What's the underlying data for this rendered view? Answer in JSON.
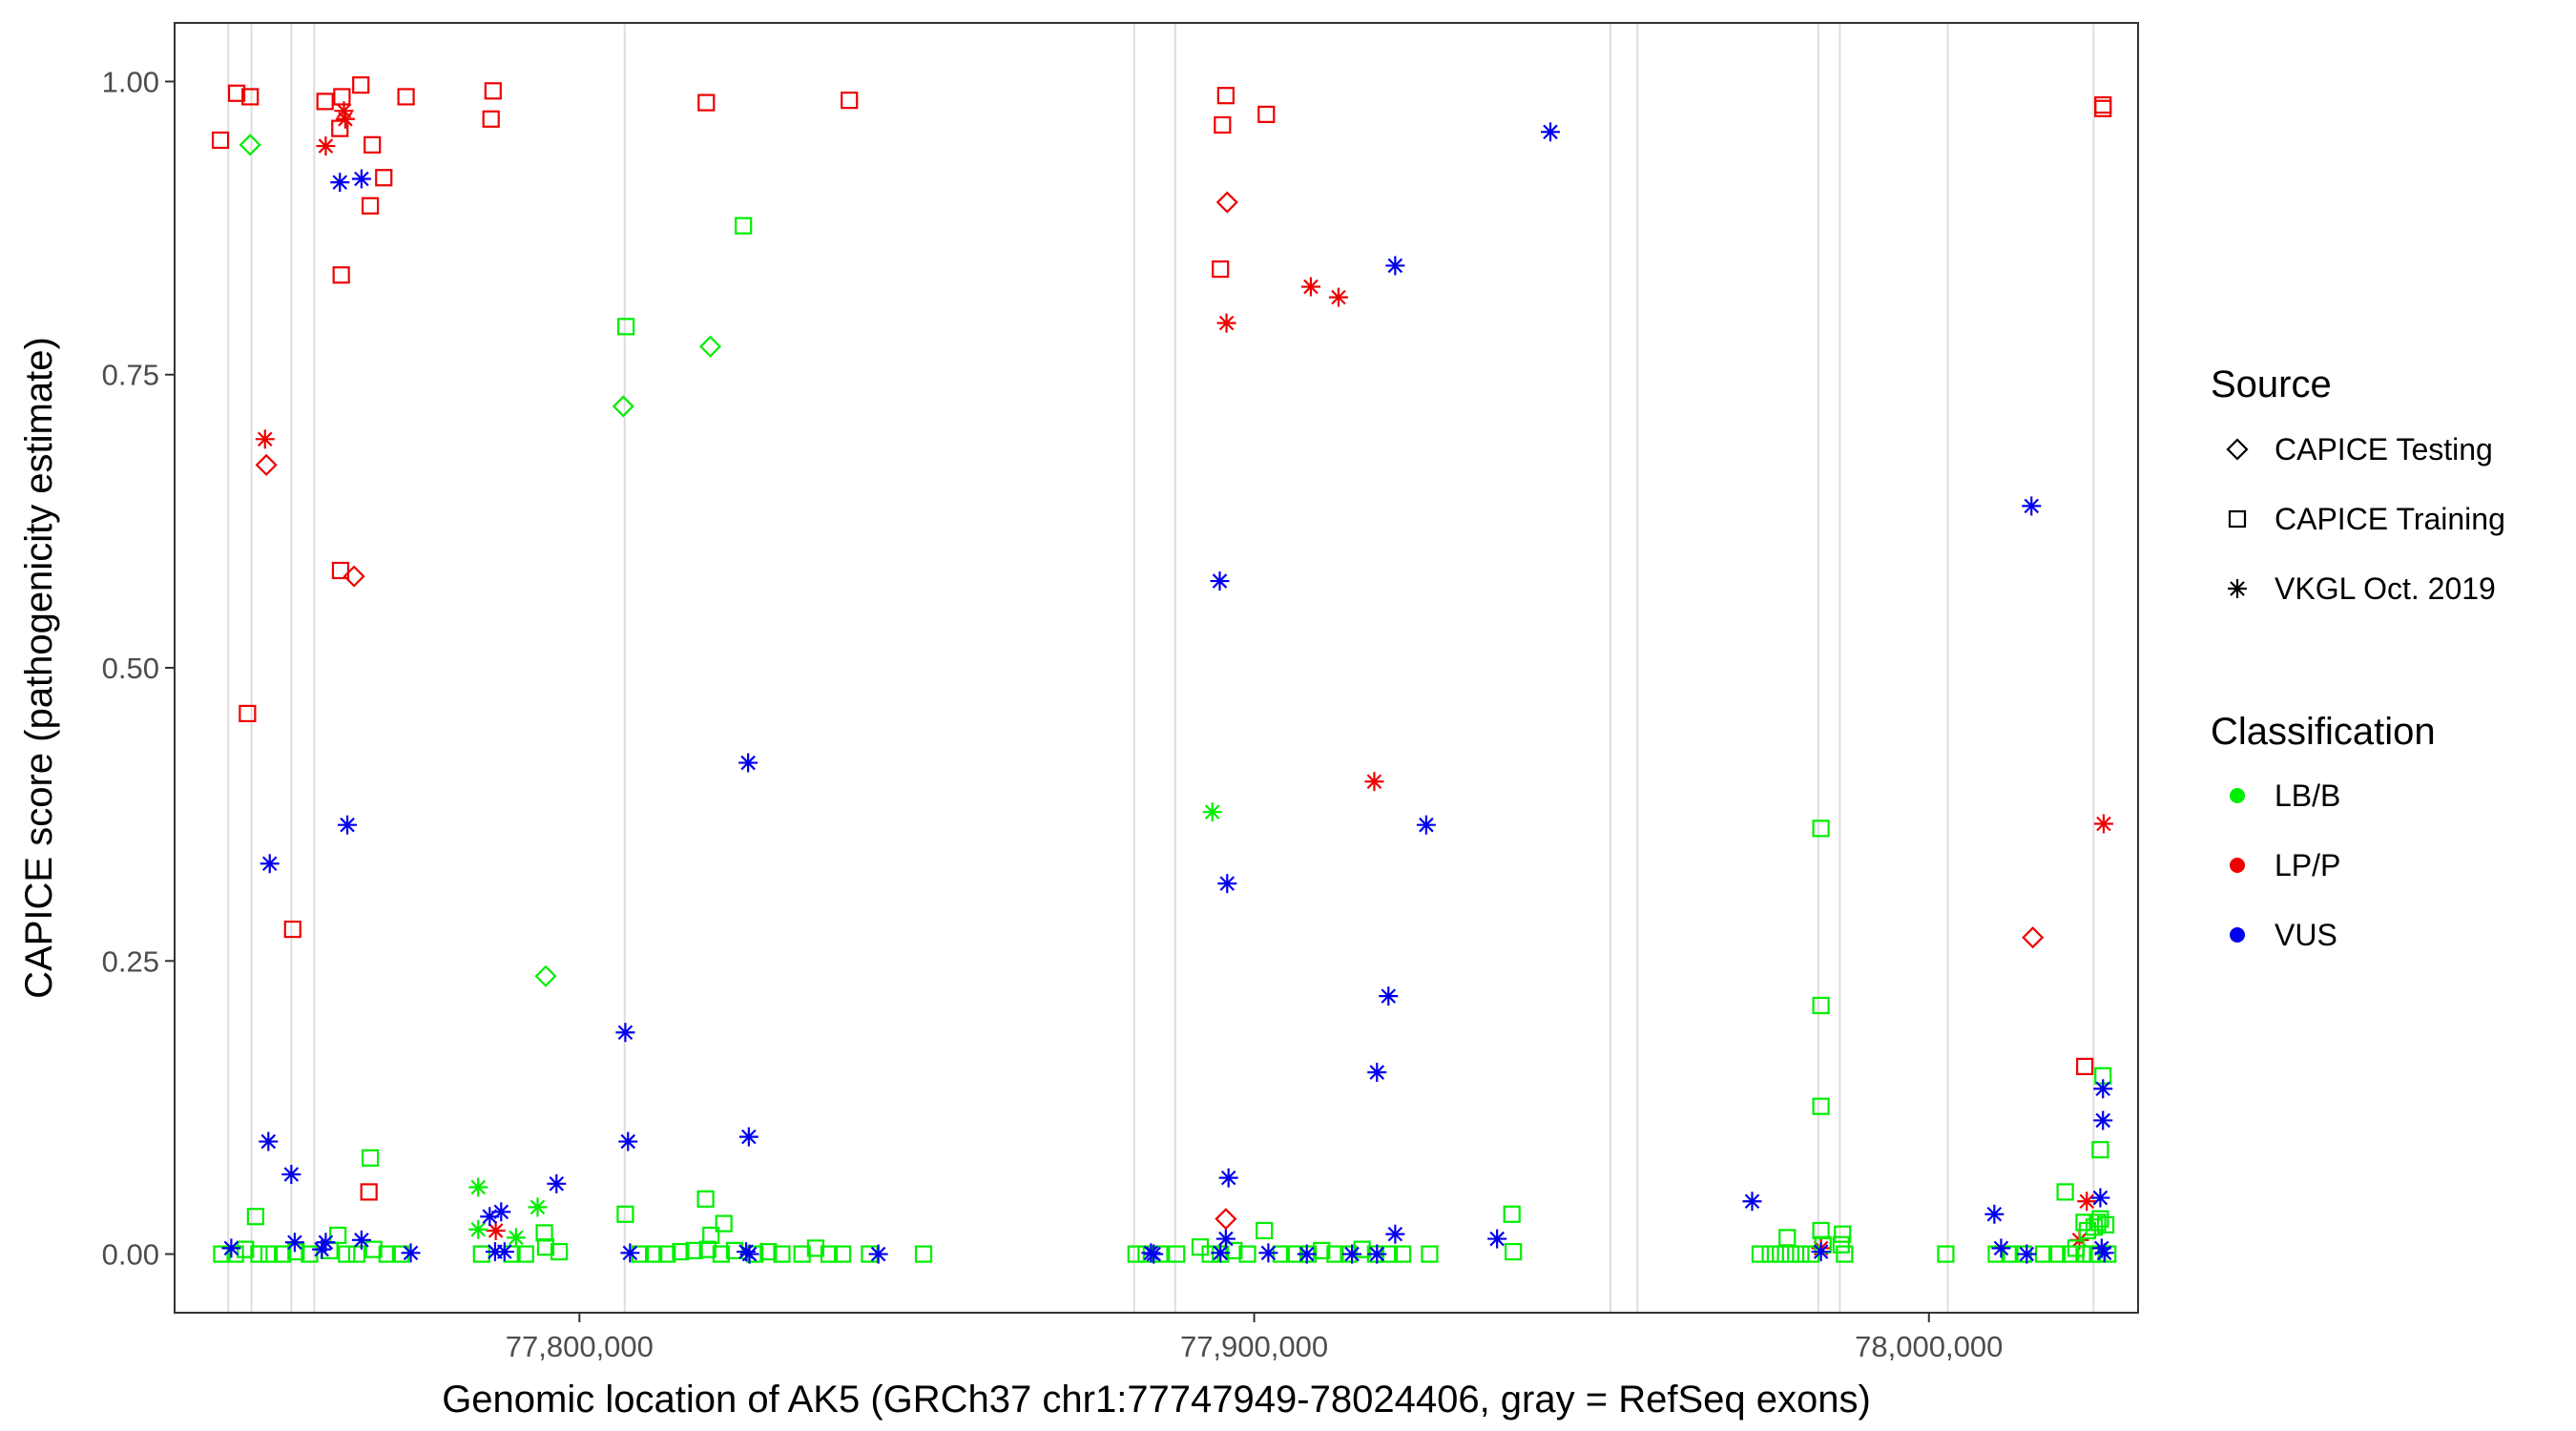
{
  "chart_data": {
    "type": "scatter",
    "xlabel": "Genomic location of AK5 (GRCh37 chr1:77747949-78024406, gray = RefSeq exons)",
    "ylabel": "CAPICE score (pathogenicity estimate)",
    "xlim": [
      77740000,
      78031000
    ],
    "ylim": [
      -0.05,
      1.05
    ],
    "x_ticks": [
      77800000,
      77900000,
      78000000
    ],
    "x_tick_labels": [
      "77,800,000",
      "77,900,000",
      "78,000,000"
    ],
    "y_ticks": [
      0,
      0.25,
      0.5,
      0.75,
      1.0
    ],
    "y_tick_labels": [
      "0.00",
      "0.25",
      "0.50",
      "0.75",
      "1.00"
    ],
    "grid": false,
    "exons": [
      77747949,
      77751400,
      77757300,
      77760700,
      77806700,
      77882200,
      77888300,
      77952800,
      77956800,
      77983600,
      77986800,
      78002800,
      78024406
    ],
    "colors": {
      "LB/B": "#00ee00",
      "LP/P": "#ee0000",
      "VUS": "#0000ee"
    },
    "legend": {
      "placement": "right",
      "source_title": "Source",
      "source_entries": [
        {
          "label": "CAPICE Testing",
          "shape": "diamond"
        },
        {
          "label": "CAPICE Training",
          "shape": "square"
        },
        {
          "label": "VKGL Oct. 2019",
          "shape": "asterisk"
        }
      ],
      "class_title": "Classification",
      "class_entries": [
        {
          "label": "LB/B",
          "key": "LB/B"
        },
        {
          "label": "LP/P",
          "key": "LP/P"
        },
        {
          "label": "VUS",
          "key": "VUS"
        }
      ]
    },
    "series": [
      {
        "source": "CAPICE Training",
        "classification": "LP/P",
        "points": [
          [
            77746800,
            0.95
          ],
          [
            77749200,
            0.99
          ],
          [
            77751200,
            0.987
          ],
          [
            77762300,
            0.983
          ],
          [
            77764800,
            0.987
          ],
          [
            77767600,
            0.997
          ],
          [
            77774300,
            0.987
          ],
          [
            77787200,
            0.992
          ],
          [
            77786900,
            0.968
          ],
          [
            77818800,
            0.982
          ],
          [
            77840000,
            0.984
          ],
          [
            77764500,
            0.96
          ],
          [
            77769300,
            0.946
          ],
          [
            77771000,
            0.918
          ],
          [
            77769000,
            0.894
          ],
          [
            77764700,
            0.835
          ],
          [
            77764600,
            0.583
          ],
          [
            77750800,
            0.461
          ],
          [
            77757500,
            0.277
          ],
          [
            77768800,
            0.053
          ],
          [
            77895800,
            0.988
          ],
          [
            77895300,
            0.963
          ],
          [
            77901800,
            0.972
          ],
          [
            77895000,
            0.84
          ],
          [
            78025800,
            0.98
          ],
          [
            78025800,
            0.977
          ],
          [
            78023100,
            0.16
          ]
        ]
      },
      {
        "source": "CAPICE Testing",
        "classification": "LP/P",
        "points": [
          [
            77753600,
            0.673
          ],
          [
            77766600,
            0.578
          ],
          [
            77896000,
            0.897
          ],
          [
            77895800,
            0.03
          ],
          [
            78015400,
            0.27
          ]
        ]
      },
      {
        "source": "VKGL Oct. 2019",
        "classification": "LP/P",
        "points": [
          [
            77762400,
            0.945
          ],
          [
            77765100,
            0.975
          ],
          [
            77765300,
            0.968
          ],
          [
            77753400,
            0.695
          ],
          [
            77895900,
            0.794
          ],
          [
            77908400,
            0.825
          ],
          [
            77912500,
            0.816
          ],
          [
            77917800,
            0.403
          ],
          [
            77787600,
            0.02
          ],
          [
            78025900,
            0.367
          ],
          [
            78023400,
            0.045
          ],
          [
            78022300,
            0.012
          ],
          [
            77984000,
            0.005
          ]
        ]
      },
      {
        "source": "CAPICE Testing",
        "classification": "LB/B",
        "points": [
          [
            77751200,
            0.946
          ],
          [
            77806500,
            0.723
          ],
          [
            77819400,
            0.774
          ],
          [
            77795000,
            0.237
          ]
        ]
      },
      {
        "source": "CAPICE Training",
        "classification": "LB/B",
        "points": [
          [
            77806900,
            0.791
          ],
          [
            77824300,
            0.877
          ],
          [
            77769000,
            0.082
          ],
          [
            77752000,
            0.032
          ],
          [
            77806800,
            0.034
          ],
          [
            77818700,
            0.047
          ],
          [
            77821400,
            0.026
          ],
          [
            77819500,
            0.016
          ],
          [
            77764200,
            0.016
          ],
          [
            77794800,
            0.018
          ],
          [
            77747000,
            0.0
          ],
          [
            77749000,
            0.0
          ],
          [
            77750500,
            0.004
          ],
          [
            77752500,
            0.0
          ],
          [
            77754000,
            0.0
          ],
          [
            77756000,
            0.0
          ],
          [
            77758000,
            0.002
          ],
          [
            77760000,
            0.0
          ],
          [
            77763000,
            0.003
          ],
          [
            77765500,
            0.0
          ],
          [
            77767000,
            0.0
          ],
          [
            77769500,
            0.004
          ],
          [
            77771500,
            0.0
          ],
          [
            77773500,
            0.0
          ],
          [
            77785500,
            0.0
          ],
          [
            77790000,
            0.0
          ],
          [
            77792000,
            0.0
          ],
          [
            77795000,
            0.006
          ],
          [
            77797000,
            0.002
          ],
          [
            77809000,
            0.0
          ],
          [
            77811000,
            0.0
          ],
          [
            77813000,
            0.0
          ],
          [
            77815000,
            0.002
          ],
          [
            77817000,
            0.003
          ],
          [
            77819000,
            0.004
          ],
          [
            77821000,
            0.0
          ],
          [
            77823000,
            0.003
          ],
          [
            77826000,
            0.0
          ],
          [
            77828000,
            0.002
          ],
          [
            77830000,
            0.0
          ],
          [
            77833000,
            0.0
          ],
          [
            77835000,
            0.005
          ],
          [
            77837000,
            0.0
          ],
          [
            77839000,
            0.0
          ],
          [
            77843000,
            0.0
          ],
          [
            77851000,
            0.0
          ],
          [
            77882500,
            0.0
          ],
          [
            77884000,
            0.0
          ],
          [
            77886000,
            0.0
          ],
          [
            77888500,
            0.0
          ],
          [
            77892000,
            0.006
          ],
          [
            77893500,
            0.0
          ],
          [
            77895000,
            0.0
          ],
          [
            77897000,
            0.003
          ],
          [
            77899000,
            0.0
          ],
          [
            77901500,
            0.02
          ],
          [
            77904000,
            0.0
          ],
          [
            77906000,
            0.0
          ],
          [
            77908000,
            0.0
          ],
          [
            77910000,
            0.003
          ],
          [
            77912000,
            0.0
          ],
          [
            77914000,
            0.0
          ],
          [
            77916000,
            0.004
          ],
          [
            77918000,
            0.0
          ],
          [
            77920000,
            0.0
          ],
          [
            77922000,
            0.0
          ],
          [
            77926000,
            0.0
          ],
          [
            77938200,
            0.034
          ],
          [
            77938400,
            0.002
          ],
          [
            77975000,
            0.0
          ],
          [
            77976500,
            0.0
          ],
          [
            77978000,
            0.0
          ],
          [
            77979500,
            0.0
          ],
          [
            77981000,
            0.0
          ],
          [
            77982500,
            0.0
          ],
          [
            77979000,
            0.014
          ],
          [
            77984000,
            0.363
          ],
          [
            77984000,
            0.212
          ],
          [
            77984000,
            0.126
          ],
          [
            77984000,
            0.02
          ],
          [
            77984300,
            0.008
          ],
          [
            77987200,
            0.017
          ],
          [
            77987000,
            0.008
          ],
          [
            77987500,
            0.0
          ],
          [
            78002500,
            0.0
          ],
          [
            78010000,
            0.0
          ],
          [
            78012000,
            0.0
          ],
          [
            78014000,
            0.0
          ],
          [
            78017000,
            0.0
          ],
          [
            78019000,
            0.0
          ],
          [
            78021000,
            0.0
          ],
          [
            78023000,
            0.0
          ],
          [
            78025000,
            0.0
          ],
          [
            78020200,
            0.053
          ],
          [
            78021800,
            0.005
          ],
          [
            78023500,
            0.02
          ],
          [
            78023000,
            0.027
          ],
          [
            78024500,
            0.023
          ],
          [
            78025000,
            0.027
          ],
          [
            78025400,
            0.03
          ],
          [
            78025400,
            0.089
          ],
          [
            78026200,
            0.025
          ],
          [
            78025800,
            0.152
          ],
          [
            78024000,
            0.0
          ],
          [
            78026500,
            0.0
          ]
        ]
      },
      {
        "source": "VKGL Oct. 2019",
        "classification": "LB/B",
        "points": [
          [
            77785000,
            0.057
          ],
          [
            77793800,
            0.04
          ],
          [
            77785000,
            0.021
          ],
          [
            77790600,
            0.014
          ],
          [
            77893800,
            0.377
          ]
        ]
      },
      {
        "source": "VKGL Oct. 2019",
        "classification": "VUS",
        "points": [
          [
            77764500,
            0.914
          ],
          [
            77767700,
            0.917
          ],
          [
            77943900,
            0.957
          ],
          [
            77920900,
            0.843
          ],
          [
            77894900,
            0.574
          ],
          [
            77825000,
            0.419
          ],
          [
            77765600,
            0.366
          ],
          [
            77925500,
            0.366
          ],
          [
            77754100,
            0.333
          ],
          [
            77896000,
            0.316
          ],
          [
            77919900,
            0.22
          ],
          [
            77806800,
            0.189
          ],
          [
            77918200,
            0.155
          ],
          [
            77753900,
            0.096
          ],
          [
            77807200,
            0.096
          ],
          [
            77825100,
            0.1
          ],
          [
            77757300,
            0.068
          ],
          [
            77896200,
            0.065
          ],
          [
            77796600,
            0.06
          ],
          [
            77788400,
            0.036
          ],
          [
            77786700,
            0.032
          ],
          [
            77920900,
            0.017
          ],
          [
            77757800,
            0.01
          ],
          [
            77762400,
            0.01
          ],
          [
            77767700,
            0.012
          ],
          [
            77748400,
            0.005
          ],
          [
            77761800,
            0.004
          ],
          [
            77775000,
            0.001
          ],
          [
            77787500,
            0.002
          ],
          [
            77788900,
            0.002
          ],
          [
            77807500,
            0.001
          ],
          [
            77824700,
            0.002
          ],
          [
            77825200,
            0.0
          ],
          [
            77844300,
            0.0
          ],
          [
            77884700,
            0.001
          ],
          [
            77885100,
            0.0
          ],
          [
            77895000,
            0.001
          ],
          [
            77895800,
            0.013
          ],
          [
            77902100,
            0.001
          ],
          [
            77907800,
            0.0
          ],
          [
            77914500,
            0.0
          ],
          [
            77918200,
            0.0
          ],
          [
            77936000,
            0.013
          ],
          [
            77973800,
            0.045
          ],
          [
            77984000,
            0.002
          ],
          [
            78009700,
            0.034
          ],
          [
            78010700,
            0.005
          ],
          [
            78015200,
            0.638
          ],
          [
            78014500,
            0.0
          ],
          [
            78025800,
            0.141
          ],
          [
            78025800,
            0.114
          ],
          [
            78025400,
            0.048
          ],
          [
            78025600,
            0.005
          ],
          [
            78026000,
            0.001
          ]
        ]
      }
    ]
  }
}
